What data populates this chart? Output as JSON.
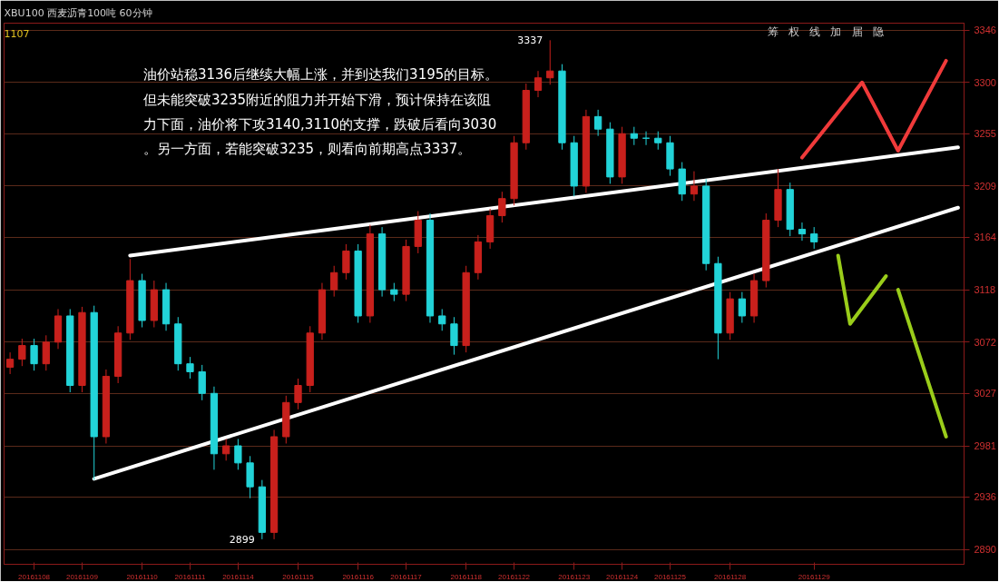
{
  "chart_data": {
    "type": "candlestick",
    "title": "XBU100 西麦沥青100吨 60分钟",
    "annotations": [
      "油价站稳3136后继续大幅上涨，并到达我们3195的目标。",
      "但未能突破3235附近的阻力并开始下滑，预计保持在该阻",
      "力下面，油价将下攻3140,3110的支撑，跌破后看向3030",
      "。另一方面，若能突破3235，则看向前期高点3337。",
      "1107",
      "筹",
      "权",
      "线",
      "加",
      "届",
      "隐",
      "3337",
      "2899"
    ],
    "categories": [
      null,
      null,
      "20161108",
      null,
      null,
      null,
      "20161109",
      null,
      null,
      null,
      null,
      "20161110",
      null,
      null,
      null,
      "20161111",
      null,
      null,
      null,
      "20161114",
      null,
      null,
      null,
      null,
      "20161115",
      null,
      null,
      null,
      null,
      "20161116",
      null,
      null,
      null,
      "20161117",
      null,
      null,
      null,
      null,
      "20161118",
      null,
      null,
      null,
      "20161122",
      null,
      null,
      null,
      null,
      "20161123",
      null,
      null,
      null,
      "20161124",
      null,
      null,
      null,
      "20161125",
      null,
      null,
      null,
      null,
      "20161128",
      null,
      null,
      null,
      null,
      null,
      null,
      "20161129",
      null,
      null,
      null,
      null,
      null,
      null,
      null,
      null,
      null,
      null,
      null,
      null
    ],
    "ohlc": [
      [
        3050,
        3063,
        3044,
        3057
      ],
      [
        3057,
        3075,
        3051,
        3069
      ],
      [
        3069,
        3075,
        3047,
        3053
      ],
      [
        3053,
        3078,
        3047,
        3072
      ],
      [
        3072,
        3101,
        3066,
        3095
      ],
      [
        3095,
        3101,
        3028,
        3034
      ],
      [
        3034,
        3103,
        3028,
        3098
      ],
      [
        3098,
        3104,
        2951,
        2989
      ],
      [
        2989,
        3048,
        2983,
        3042
      ],
      [
        3042,
        3086,
        3036,
        3080
      ],
      [
        3080,
        3145,
        3074,
        3126
      ],
      [
        3126,
        3132,
        3085,
        3091
      ],
      [
        3091,
        3126,
        3085,
        3118
      ],
      [
        3118,
        3124,
        3082,
        3088
      ],
      [
        3088,
        3094,
        3047,
        3053
      ],
      [
        3053,
        3059,
        3040,
        3046
      ],
      [
        3046,
        3052,
        3021,
        3027
      ],
      [
        3027,
        3033,
        2960,
        2974
      ],
      [
        2974,
        2987,
        2968,
        2981
      ],
      [
        2981,
        2987,
        2960,
        2966
      ],
      [
        2966,
        2972,
        2935,
        2945
      ],
      [
        2945,
        2951,
        2899,
        2905
      ],
      [
        2905,
        2995,
        2899,
        2989
      ],
      [
        2989,
        3025,
        2983,
        3019
      ],
      [
        3019,
        3040,
        3013,
        3034
      ],
      [
        3034,
        3086,
        3028,
        3080
      ],
      [
        3080,
        3124,
        3074,
        3118
      ],
      [
        3118,
        3139,
        3112,
        3133
      ],
      [
        3133,
        3158,
        3127,
        3152
      ],
      [
        3152,
        3158,
        3089,
        3095
      ],
      [
        3095,
        3175,
        3089,
        3167
      ],
      [
        3167,
        3173,
        3112,
        3118
      ],
      [
        3118,
        3124,
        3108,
        3114
      ],
      [
        3114,
        3162,
        3108,
        3156
      ],
      [
        3156,
        3187,
        3150,
        3179
      ],
      [
        3179,
        3185,
        3089,
        3095
      ],
      [
        3095,
        3101,
        3082,
        3088
      ],
      [
        3088,
        3094,
        3061,
        3069
      ],
      [
        3069,
        3139,
        3063,
        3133
      ],
      [
        3133,
        3166,
        3127,
        3160
      ],
      [
        3160,
        3189,
        3154,
        3183
      ],
      [
        3183,
        3204,
        3177,
        3198
      ],
      [
        3198,
        3253,
        3192,
        3247
      ],
      [
        3247,
        3299,
        3241,
        3293
      ],
      [
        3293,
        3310,
        3287,
        3304
      ],
      [
        3304,
        3337,
        3298,
        3310
      ],
      [
        3310,
        3316,
        3241,
        3247
      ],
      [
        3247,
        3253,
        3200,
        3209
      ],
      [
        3209,
        3276,
        3203,
        3270
      ],
      [
        3270,
        3276,
        3253,
        3259
      ],
      [
        3259,
        3265,
        3211,
        3217
      ],
      [
        3217,
        3261,
        3211,
        3255
      ],
      [
        3255,
        3261,
        3245,
        3251
      ],
      [
        3251,
        3257,
        3245,
        3251
      ],
      [
        3251,
        3257,
        3241,
        3247
      ],
      [
        3247,
        3253,
        3218,
        3224
      ],
      [
        3224,
        3230,
        3196,
        3202
      ],
      [
        3202,
        3222,
        3196,
        3209
      ],
      [
        3209,
        3215,
        3135,
        3141
      ],
      [
        3141,
        3147,
        3057,
        3080
      ],
      [
        3080,
        3116,
        3074,
        3110
      ],
      [
        3110,
        3116,
        3089,
        3095
      ],
      [
        3095,
        3132,
        3089,
        3126
      ],
      [
        3126,
        3185,
        3120,
        3179
      ],
      [
        3179,
        3224,
        3173,
        3206
      ],
      [
        3206,
        3212,
        3165,
        3171
      ],
      [
        3171,
        3177,
        3161,
        3167
      ],
      [
        3167,
        3173,
        3154,
        3160
      ],
      null,
      null,
      null,
      null,
      null,
      null,
      null,
      null,
      null,
      null,
      null,
      null
    ],
    "colors": [
      "#c8201c",
      "#c8201c",
      "#22d3d8",
      "#c8201c",
      "#c8201c",
      "#22d3d8",
      "#c8201c",
      "#22d3d8",
      "#c8201c",
      "#c8201c",
      "#c8201c",
      "#22d3d8",
      "#c8201c",
      "#22d3d8",
      "#22d3d8",
      "#22d3d8",
      "#22d3d8",
      "#22d3d8",
      "#c8201c",
      "#22d3d8",
      "#22d3d8",
      "#22d3d8",
      "#c8201c",
      "#c8201c",
      "#c8201c",
      "#c8201c",
      "#c8201c",
      "#c8201c",
      "#c8201c",
      "#22d3d8",
      "#c8201c",
      "#22d3d8",
      "#22d3d8",
      "#c8201c",
      "#c8201c",
      "#22d3d8",
      "#22d3d8",
      "#22d3d8",
      "#c8201c",
      "#c8201c",
      "#c8201c",
      "#c8201c",
      "#c8201c",
      "#c8201c",
      "#c8201c",
      "#c8201c",
      "#22d3d8",
      "#22d3d8",
      "#c8201c",
      "#22d3d8",
      "#22d3d8",
      "#c8201c",
      "#22d3d8",
      "#22d3d8",
      "#22d3d8",
      "#22d3d8",
      "#22d3d8",
      "#c8201c",
      "#22d3d8",
      "#22d3d8",
      "#c8201c",
      "#22d3d8",
      "#c8201c",
      "#c8201c",
      "#c8201c",
      "#22d3d8",
      "#22d3d8",
      "#22d3d8",
      null,
      null,
      null,
      null,
      null,
      null,
      null,
      null,
      null,
      null,
      null,
      null
    ],
    "series": [
      {
        "type": "line",
        "color": "#ffffff",
        "values": [
          null,
          null,
          null,
          null,
          null,
          null,
          null,
          null,
          null,
          null,
          3148,
          null,
          null,
          null,
          null,
          null,
          null,
          null,
          null,
          null,
          null,
          null,
          null,
          null,
          null,
          null,
          null,
          null,
          null,
          null,
          null,
          null,
          null,
          null,
          null,
          null,
          null,
          null,
          null,
          null,
          null,
          null,
          null,
          null,
          null,
          null,
          null,
          null,
          null,
          null,
          null,
          null,
          null,
          null,
          null,
          null,
          null,
          null,
          null,
          null,
          null,
          null,
          null,
          null,
          null,
          null,
          null,
          null,
          null,
          null,
          null,
          null,
          null,
          null,
          null,
          null,
          null,
          null,
          null,
          3243
        ]
      },
      {
        "type": "line",
        "color": "#ffffff",
        "values": [
          null,
          null,
          null,
          null,
          null,
          null,
          null,
          2952,
          null,
          null,
          null,
          null,
          null,
          null,
          null,
          null,
          null,
          null,
          null,
          null,
          null,
          null,
          null,
          null,
          null,
          null,
          null,
          null,
          null,
          null,
          null,
          null,
          null,
          null,
          null,
          null,
          null,
          null,
          null,
          null,
          null,
          null,
          null,
          null,
          null,
          null,
          null,
          null,
          null,
          null,
          null,
          null,
          null,
          null,
          null,
          null,
          null,
          null,
          null,
          null,
          null,
          null,
          null,
          null,
          null,
          null,
          null,
          null,
          null,
          null,
          null,
          null,
          null,
          null,
          null,
          null,
          null,
          null,
          null,
          3190
        ]
      },
      {
        "type": "line",
        "color": "#f03a3a",
        "values": [
          null,
          null,
          null,
          null,
          null,
          null,
          null,
          null,
          null,
          null,
          null,
          null,
          null,
          null,
          null,
          null,
          null,
          null,
          null,
          null,
          null,
          null,
          null,
          null,
          null,
          null,
          null,
          null,
          null,
          null,
          null,
          null,
          null,
          null,
          null,
          null,
          null,
          null,
          null,
          null,
          null,
          null,
          null,
          null,
          null,
          null,
          null,
          null,
          null,
          null,
          null,
          null,
          null,
          null,
          null,
          null,
          null,
          null,
          null,
          null,
          null,
          null,
          null,
          null,
          null,
          null,
          3234,
          null,
          null,
          null,
          null,
          3300,
          null,
          null,
          3240,
          null,
          null,
          null,
          3319,
          null
        ]
      },
      {
        "type": "line",
        "color": "#9acd1a",
        "values": [
          null,
          null,
          null,
          null,
          null,
          null,
          null,
          null,
          null,
          null,
          null,
          null,
          null,
          null,
          null,
          null,
          null,
          null,
          null,
          null,
          null,
          null,
          null,
          null,
          null,
          null,
          null,
          null,
          null,
          null,
          null,
          null,
          null,
          null,
          null,
          null,
          null,
          null,
          null,
          null,
          null,
          null,
          null,
          null,
          null,
          null,
          null,
          null,
          null,
          null,
          null,
          null,
          null,
          null,
          null,
          null,
          null,
          null,
          null,
          null,
          null,
          null,
          null,
          null,
          null,
          null,
          null,
          null,
          null,
          3148,
          3088,
          null,
          null,
          3130,
          null,
          null,
          null,
          null,
          null,
          null
        ]
      },
      {
        "type": "line",
        "color": "#9acd1a",
        "values": [
          null,
          null,
          null,
          null,
          null,
          null,
          null,
          null,
          null,
          null,
          null,
          null,
          null,
          null,
          null,
          null,
          null,
          null,
          null,
          null,
          null,
          null,
          null,
          null,
          null,
          null,
          null,
          null,
          null,
          null,
          null,
          null,
          null,
          null,
          null,
          null,
          null,
          null,
          null,
          null,
          null,
          null,
          null,
          null,
          null,
          null,
          null,
          null,
          null,
          null,
          null,
          null,
          null,
          null,
          null,
          null,
          null,
          null,
          null,
          null,
          null,
          null,
          null,
          null,
          null,
          null,
          null,
          null,
          null,
          null,
          null,
          null,
          null,
          null,
          3118,
          null,
          null,
          null,
          2989,
          null
        ]
      }
    ],
    "ylim": [
      2877,
      3352
    ],
    "yticks": [
      2890,
      2936,
      2981,
      3027,
      3072,
      3118,
      3164,
      3209,
      3255,
      3300,
      3346
    ],
    "grid": "y"
  }
}
